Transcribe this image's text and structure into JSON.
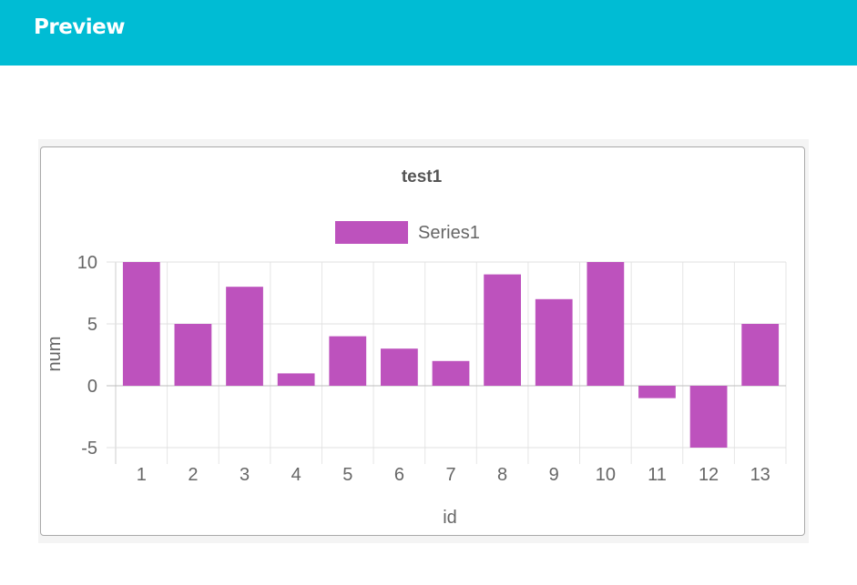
{
  "header": {
    "title": "Preview"
  },
  "chart_data": {
    "type": "bar",
    "title": "test1",
    "xlabel": "id",
    "ylabel": "num",
    "categories": [
      "1",
      "2",
      "3",
      "4",
      "5",
      "6",
      "7",
      "8",
      "9",
      "10",
      "11",
      "12",
      "13"
    ],
    "series": [
      {
        "name": "Series1",
        "color": "#bd52bd",
        "values": [
          10,
          5,
          8,
          1,
          4,
          3,
          2,
          9,
          7,
          10,
          -1,
          -5,
          5
        ]
      }
    ],
    "ylim": [
      -5,
      10
    ],
    "yticks": [
      "10",
      "5",
      "0",
      "-5"
    ],
    "legend_position": "top-center",
    "grid": true
  }
}
